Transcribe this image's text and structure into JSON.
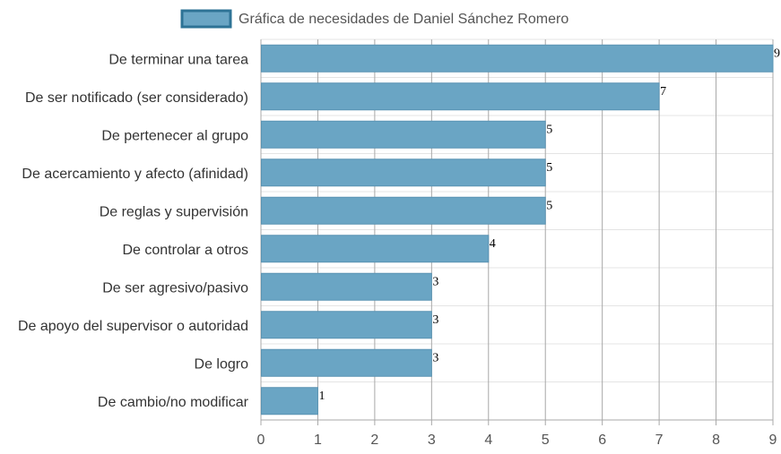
{
  "chart_data": {
    "type": "bar",
    "orientation": "horizontal",
    "categories": [
      "De terminar una tarea",
      "De ser notificado (ser considerado)",
      "De pertenecer al grupo",
      "De acercamiento y afecto (afinidad)",
      "De reglas y supervisión",
      "De controlar a otros",
      "De ser agresivo/pasivo",
      "De apoyo del supervisor o autoridad",
      "De logro",
      "De cambio/no modificar"
    ],
    "series": [
      {
        "name": "Gráfica de necesidades de Daniel Sánchez Romero",
        "values": [
          9,
          7,
          5,
          5,
          5,
          4,
          3,
          3,
          3,
          1
        ]
      }
    ],
    "xlim": [
      0,
      9
    ],
    "x_ticks": [
      "0",
      "1",
      "2",
      "3",
      "4",
      "5",
      "6",
      "7",
      "8",
      "9"
    ],
    "grid": true,
    "legend": "top-center",
    "colors": {
      "bar_fill": "#6aa5c4",
      "bar_stroke": "#5a94b3",
      "legend_fill": "#6aa5c4",
      "legend_stroke": "#2e7396",
      "grid": "#a8a8a8",
      "row_line": "#e4e4e4"
    }
  }
}
